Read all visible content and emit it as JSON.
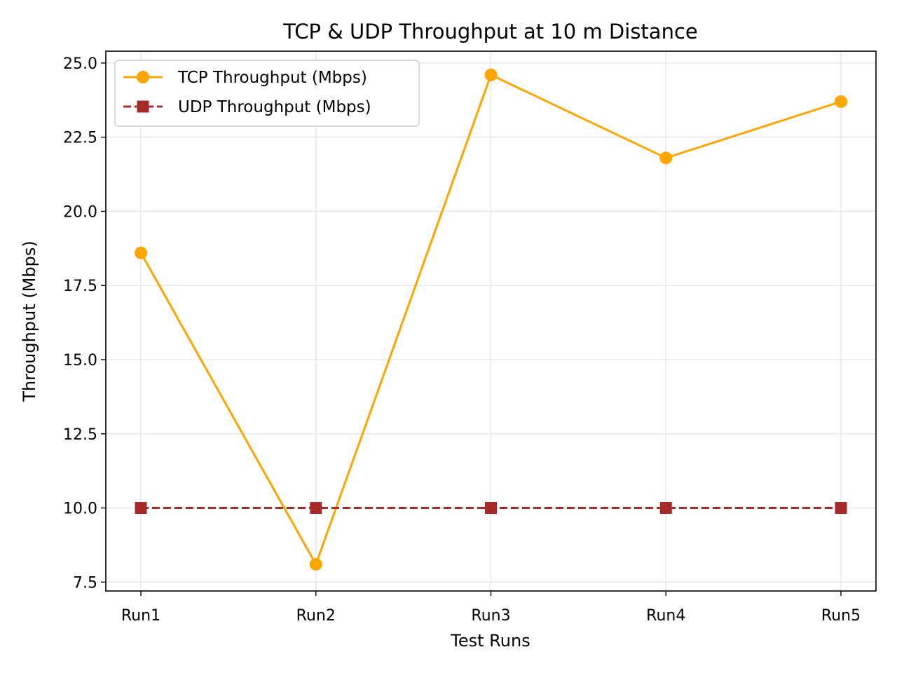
{
  "chart_data": {
    "type": "line",
    "title": "TCP & UDP Throughput at 10 m Distance",
    "xlabel": "Test Runs",
    "ylabel": "Throughput (Mbps)",
    "categories": [
      "Run1",
      "Run2",
      "Run3",
      "Run4",
      "Run5"
    ],
    "ylim": [
      7.2,
      25.4
    ],
    "yticks": [
      7.5,
      10.0,
      12.5,
      15.0,
      17.5,
      20.0,
      22.5,
      25.0
    ],
    "ytick_labels": [
      "7.5",
      "10.0",
      "12.5",
      "15.0",
      "17.5",
      "20.0",
      "22.5",
      "25.0"
    ],
    "grid": true,
    "legend_position": "top-left",
    "series": [
      {
        "name": "TCP Throughput (Mbps)",
        "values": [
          18.6,
          8.1,
          24.6,
          21.8,
          23.7
        ],
        "color": "#ffa500",
        "line_style": "solid",
        "marker": "circle"
      },
      {
        "name": "UDP Throughput (Mbps)",
        "values": [
          10.0,
          10.0,
          10.0,
          10.0,
          10.0
        ],
        "color": "#a52a2a",
        "line_style": "dashed",
        "marker": "square"
      }
    ]
  }
}
